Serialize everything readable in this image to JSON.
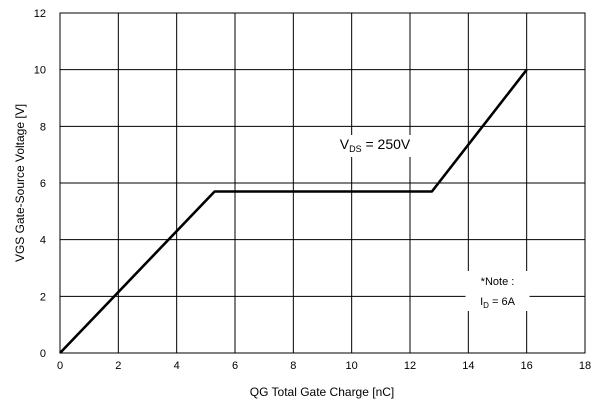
{
  "chart_data": {
    "type": "line",
    "title": "",
    "xlabel": "QG Total Gate Charge [nC]",
    "ylabel": "VGS Gate-Source Voltage [V]",
    "xlim": [
      0,
      18
    ],
    "ylim": [
      0,
      12
    ],
    "x_ticks": [
      0,
      2,
      4,
      6,
      8,
      10,
      12,
      14,
      16,
      18
    ],
    "y_ticks": [
      0,
      2,
      4,
      6,
      8,
      10,
      12
    ],
    "grid": true,
    "legend": "none",
    "line_color": "#000000",
    "series": [
      {
        "x": [
          0,
          5.3,
          12.75,
          16
        ],
        "y": [
          0,
          5.7,
          5.7,
          10
        ]
      }
    ],
    "annotations": {
      "vds": {
        "main": "V",
        "sub": "DS",
        "rest": " = 250V",
        "x": 10.8,
        "y": 7.2
      },
      "note_title": {
        "text": "*Note :",
        "x": 15.0,
        "y": 2.4
      },
      "note_id": {
        "main": "I",
        "sub": "D",
        "rest": " = 6A",
        "x": 15.0,
        "y": 1.7
      }
    }
  }
}
